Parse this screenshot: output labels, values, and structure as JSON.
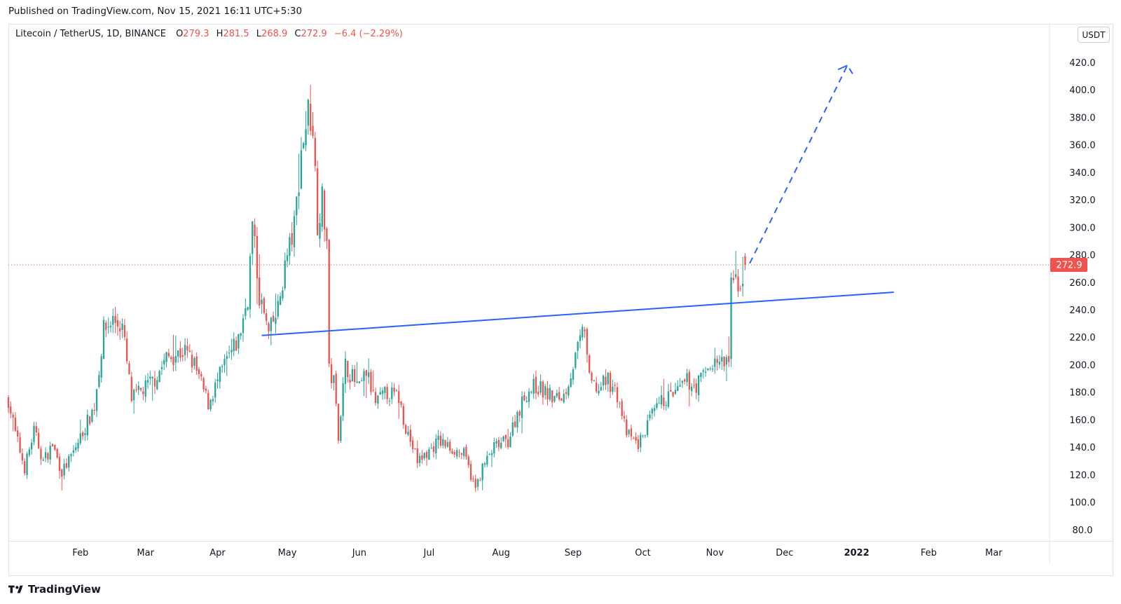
{
  "header": {
    "published": "Published on TradingView.com, Nov 15, 2021 16:11 UTC+5:30"
  },
  "legend": {
    "symbol": "Litecoin / TetherUS, 1D, BINANCE",
    "o_label": "O",
    "o_value": "279.3",
    "h_label": "H",
    "h_value": "281.5",
    "l_label": "L",
    "l_value": "268.9",
    "c_label": "C",
    "c_value": "272.9",
    "change": "−6.4 (−2.29%)"
  },
  "currency_button": "USDT",
  "brand": "TradingView",
  "colors": {
    "up": "#26a69a",
    "down": "#ef5350",
    "trendline": "#2962ff",
    "price_label": "#ef5350"
  },
  "chart_data": {
    "type": "candlestick",
    "y_axis": {
      "ticks": [
        80,
        100,
        120,
        140,
        160,
        180,
        200,
        220,
        240,
        260,
        280,
        300,
        320,
        340,
        360,
        380,
        400,
        420
      ],
      "tick_labels": [
        "80.0",
        "100.0",
        "120.0",
        "140.0",
        "160.0",
        "180.0",
        "200.0",
        "220.0",
        "240.0",
        "260.0",
        "280.0",
        "300.0",
        "320.0",
        "340.0",
        "360.0",
        "380.0",
        "400.0",
        "420.0"
      ],
      "ylim": [
        72,
        434
      ]
    },
    "x_axis": {
      "labels": [
        "Feb",
        "Mar",
        "Apr",
        "May",
        "Jun",
        "Jul",
        "Aug",
        "Sep",
        "Oct",
        "Nov",
        "Dec",
        "2022",
        "Feb",
        "Mar"
      ],
      "label_dates": [
        "2021-02-01",
        "2021-03-01",
        "2021-04-01",
        "2021-05-01",
        "2021-06-01",
        "2021-07-01",
        "2021-08-01",
        "2021-09-01",
        "2021-10-01",
        "2021-11-01",
        "2021-12-01",
        "2022-01-01",
        "2022-02-01",
        "2022-03-01"
      ],
      "xlim": [
        "2021-01-01",
        "2022-03-25"
      ]
    },
    "last_price": {
      "value": 272.9,
      "label": "272.9",
      "date": "2021-11-14"
    },
    "keypoints": [
      [
        "2021-01-01",
        175
      ],
      [
        "2021-01-04",
        150
      ],
      [
        "2021-01-08",
        125
      ],
      [
        "2021-01-12",
        152
      ],
      [
        "2021-01-16",
        130
      ],
      [
        "2021-01-20",
        142
      ],
      [
        "2021-01-24",
        122
      ],
      [
        "2021-01-28",
        133
      ],
      [
        "2021-02-03",
        155
      ],
      [
        "2021-02-07",
        170
      ],
      [
        "2021-02-11",
        225
      ],
      [
        "2021-02-15",
        233
      ],
      [
        "2021-02-19",
        228
      ],
      [
        "2021-02-23",
        175
      ],
      [
        "2021-02-28",
        182
      ],
      [
        "2021-03-05",
        190
      ],
      [
        "2021-03-10",
        205
      ],
      [
        "2021-03-14",
        208
      ],
      [
        "2021-03-18",
        210
      ],
      [
        "2021-03-22",
        200
      ],
      [
        "2021-03-28",
        172
      ],
      [
        "2021-04-04",
        200
      ],
      [
        "2021-04-10",
        218
      ],
      [
        "2021-04-14",
        250
      ],
      [
        "2021-04-16",
        302
      ],
      [
        "2021-04-19",
        250
      ],
      [
        "2021-04-23",
        222
      ],
      [
        "2021-04-27",
        240
      ],
      [
        "2021-04-30",
        272
      ],
      [
        "2021-05-04",
        300
      ],
      [
        "2021-05-07",
        355
      ],
      [
        "2021-05-10",
        385
      ],
      [
        "2021-05-12",
        375
      ],
      [
        "2021-05-14",
        305
      ],
      [
        "2021-05-16",
        320
      ],
      [
        "2021-05-18",
        290
      ],
      [
        "2021-05-19",
        195
      ],
      [
        "2021-05-21",
        188
      ],
      [
        "2021-05-23",
        150
      ],
      [
        "2021-05-26",
        200
      ],
      [
        "2021-06-01",
        182
      ],
      [
        "2021-06-04",
        195
      ],
      [
        "2021-06-08",
        172
      ],
      [
        "2021-06-13",
        180
      ],
      [
        "2021-06-18",
        176
      ],
      [
        "2021-06-21",
        155
      ],
      [
        "2021-06-26",
        130
      ],
      [
        "2021-07-01",
        137
      ],
      [
        "2021-07-05",
        145
      ],
      [
        "2021-07-10",
        140
      ],
      [
        "2021-07-16",
        135
      ],
      [
        "2021-07-21",
        110
      ],
      [
        "2021-07-24",
        125
      ],
      [
        "2021-07-29",
        140
      ],
      [
        "2021-08-04",
        145
      ],
      [
        "2021-08-08",
        165
      ],
      [
        "2021-08-12",
        180
      ],
      [
        "2021-08-16",
        185
      ],
      [
        "2021-08-20",
        180
      ],
      [
        "2021-08-24",
        175
      ],
      [
        "2021-08-28",
        178
      ],
      [
        "2021-09-02",
        205
      ],
      [
        "2021-09-06",
        228
      ],
      [
        "2021-09-08",
        188
      ],
      [
        "2021-09-12",
        182
      ],
      [
        "2021-09-16",
        190
      ],
      [
        "2021-09-20",
        178
      ],
      [
        "2021-09-24",
        150
      ],
      [
        "2021-09-29",
        142
      ],
      [
        "2021-10-04",
        160
      ],
      [
        "2021-10-10",
        175
      ],
      [
        "2021-10-16",
        180
      ],
      [
        "2021-10-20",
        188
      ],
      [
        "2021-10-24",
        185
      ],
      [
        "2021-10-29",
        198
      ],
      [
        "2021-11-02",
        203
      ],
      [
        "2021-11-05",
        200
      ],
      [
        "2021-11-07",
        205
      ],
      [
        "2021-11-08",
        255
      ],
      [
        "2021-11-10",
        262
      ],
      [
        "2021-11-12",
        258
      ],
      [
        "2021-11-14",
        272.9
      ]
    ],
    "trendline": {
      "points": [
        [
          "2021-04-20",
          221.5
        ],
        [
          "2022-01-17",
          253
        ]
      ],
      "style": "solid"
    },
    "projection": {
      "points": [
        [
          "2021-11-16",
          274
        ],
        [
          "2021-12-28",
          418
        ],
        [
          "2021-12-31",
          410
        ]
      ],
      "arrow_tail": [
        [
          "2021-12-24",
          415
        ],
        [
          "2021-12-28",
          418
        ]
      ],
      "style": "dashed"
    }
  }
}
